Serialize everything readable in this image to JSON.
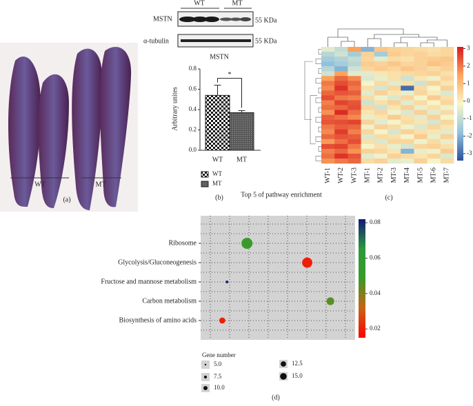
{
  "panels": {
    "a": "(a)",
    "b": "(b)",
    "c": "(c)",
    "d": "(d)"
  },
  "photo": {
    "labels": [
      "WT",
      "MT"
    ]
  },
  "blot": {
    "groups": [
      "WT",
      "MT"
    ],
    "bands": [
      "MSTN",
      "α-tubulin"
    ],
    "sizes": [
      "55 KDa",
      "55 KDa"
    ]
  },
  "chart_data": [
    {
      "type": "bar",
      "title": "MSTN",
      "y_label": "Arbitrary unites",
      "categories": [
        "WT",
        "MT"
      ],
      "values": [
        0.54,
        0.37
      ],
      "errors": [
        0.1,
        0.02
      ],
      "ylim": [
        0,
        0.8
      ],
      "yticks": [
        {
          "value": 0,
          "label": "0.0"
        },
        0.2,
        0.4,
        0.6,
        0.8
      ],
      "annotation": "*",
      "legend": [
        "WT",
        "MT"
      ]
    },
    {
      "type": "heatmap",
      "categories": [
        "WT-1",
        "WT-2",
        "WT-3",
        "MT-1",
        "MT-2",
        "MT-3",
        "MT-4",
        "MT-5",
        "MT-6",
        "MT-7"
      ],
      "values": [
        [
          -0.5,
          -1,
          1.5,
          -2,
          0.8,
          0.6,
          0.5,
          0.4,
          0.3,
          0.5
        ],
        [
          -1.2,
          -0.8,
          -1.5,
          0.6,
          -1.5,
          0.7,
          0.5,
          0.6,
          0.4,
          0.5
        ],
        [
          -1.5,
          -1.3,
          -1,
          0.5,
          -0.5,
          0.4,
          0.3,
          0.6,
          0.7,
          0.8
        ],
        [
          -1.8,
          -1.5,
          -1.2,
          0.7,
          0.6,
          0.8,
          0.5,
          0.6,
          0.9,
          0.7
        ],
        [
          -1.2,
          -2,
          -0.8,
          0.5,
          0.7,
          0.5,
          0.8,
          0.6,
          0.4,
          0.6
        ],
        [
          -0.8,
          1.5,
          -0.5,
          -0.5,
          0.2,
          0.3,
          0.4,
          0.5,
          0.6,
          0.3
        ],
        [
          1.5,
          2.2,
          1.8,
          -0.6,
          -0.4,
          0.3,
          -0.8,
          0.2,
          -0.3,
          0.5
        ],
        [
          2,
          2.5,
          2.2,
          -0.2,
          0.4,
          -0.5,
          0.3,
          -0.8,
          0.6,
          0.2
        ],
        [
          1.8,
          2.8,
          2,
          0.3,
          -0.7,
          0.5,
          -3,
          0.4,
          -0.2,
          0.6
        ],
        [
          2.2,
          2.4,
          2.3,
          -0.5,
          0.6,
          0.2,
          -0.4,
          0.5,
          0.1,
          -0.6
        ],
        [
          2.5,
          2,
          1.9,
          0.4,
          -0.3,
          -0.6,
          0.5,
          -0.2,
          0.7,
          0.3
        ],
        [
          1.9,
          2.6,
          2.4,
          -0.8,
          0.3,
          0.6,
          -0.5,
          0.4,
          -0.1,
          0.5
        ],
        [
          2.1,
          2.2,
          2.5,
          0.5,
          -0.8,
          0.2,
          0.6,
          -0.4,
          0.3,
          -0.3
        ],
        [
          1.7,
          2.9,
          2.1,
          0.2,
          0.5,
          -0.3,
          -0.6,
          0.6,
          -0.5,
          0.4
        ],
        [
          2.3,
          2.1,
          1.8,
          -0.4,
          0.2,
          0.7,
          0.3,
          -0.5,
          0.6,
          -0.2
        ],
        [
          2.4,
          2.5,
          2.6,
          0.6,
          -0.5,
          -0.2,
          0.4,
          0.2,
          -0.7,
          0.5
        ],
        [
          2,
          2.3,
          2.2,
          -0.3,
          0.6,
          0.4,
          -0.3,
          -0.6,
          0.5,
          0.2
        ],
        [
          1.8,
          2.7,
          1.9,
          0.5,
          -0.2,
          -0.7,
          0.6,
          0.3,
          0.2,
          -0.5
        ],
        [
          2.2,
          2.4,
          2.3,
          -0.6,
          0.4,
          0.3,
          -0.2,
          0.7,
          -0.4,
          0.6
        ],
        [
          1.6,
          2.1,
          2.5,
          0.3,
          -0.6,
          0.5,
          0.5,
          -0.3,
          0.4,
          -0.4
        ],
        [
          2.5,
          2.6,
          2,
          -0.2,
          0.3,
          -0.4,
          -0.7,
          0.5,
          0.6,
          0.3
        ],
        [
          1.9,
          2.2,
          1.7,
          0.6,
          0.5,
          0.2,
          -2,
          -0.4,
          -0.3,
          0.7
        ],
        [
          2.1,
          2.8,
          2.4,
          -0.5,
          -0.3,
          0.6,
          0.4,
          0.2,
          0.5,
          -0.6
        ],
        [
          1.7,
          2,
          2.2,
          0.4,
          0.6,
          -0.5,
          -0.4,
          0.6,
          -0.2,
          0.4
        ]
      ],
      "clim": [
        -3.4,
        3.1
      ],
      "cticks": [
        3,
        2,
        1,
        0,
        -1,
        -2,
        -3
      ],
      "colorscale": [
        "#2c4f9c",
        "#93c4de",
        "#f8f6c8",
        "#fca55d",
        "#d7191c"
      ]
    },
    {
      "type": "bubble",
      "title": "Top 5 of pathway enrichment",
      "categories": [
        "Ribosome",
        "Glycolysis/Gluconeogenesis",
        "Fructose and mannose metabolism",
        "Carbon metabolism",
        "Biosynthesis of amino acids"
      ],
      "x": [
        0.3,
        0.69,
        0.17,
        0.84,
        0.14
      ],
      "xlim": [
        0,
        1
      ],
      "sizes": [
        15,
        14,
        5,
        11,
        9
      ],
      "pvalues": [
        0.05,
        0.02,
        0.08,
        0.045,
        0.02
      ],
      "clim": [
        0.015,
        0.082
      ],
      "cticks": [
        0.02,
        0.04,
        0.06,
        0.08
      ],
      "colorscale": [
        "#ff0000",
        "#c86414",
        "#3a9a2a",
        "#2c9a3a",
        "#101a7a"
      ],
      "size_legend_title": "Gene number",
      "size_legend": [
        {
          "value": 5,
          "label": "5.0"
        },
        {
          "value": 7.5,
          "label": "7.5"
        },
        {
          "value": 10,
          "label": "10.0"
        },
        {
          "value": 12.5,
          "label": "12.5"
        },
        {
          "value": 15,
          "label": "15.0"
        }
      ],
      "grid": true
    }
  ]
}
